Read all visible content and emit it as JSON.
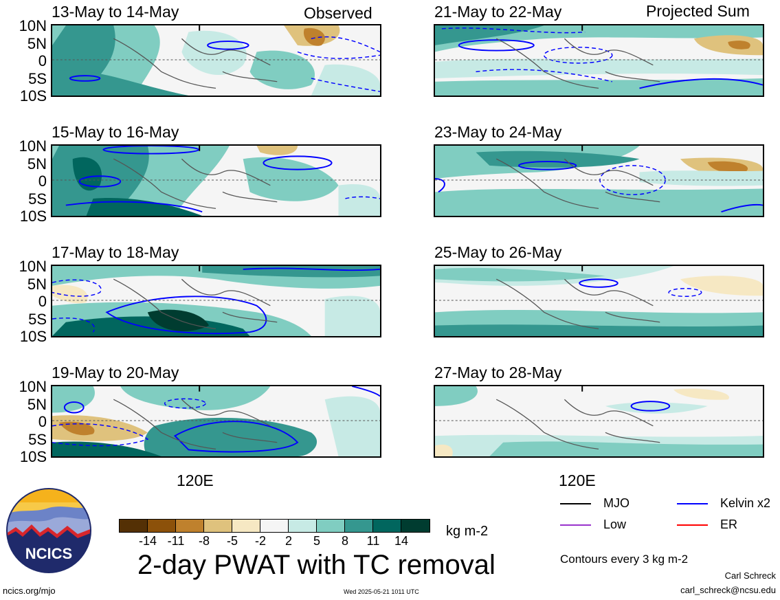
{
  "header": {
    "observed_label": "Observed",
    "projected_label": "Projected Sum"
  },
  "lat_labels": [
    "10N",
    "5N",
    "0",
    "5S",
    "10S"
  ],
  "lon_label": "120E",
  "panels": [
    {
      "title": "13-May to 14-May",
      "column": "observed"
    },
    {
      "title": "15-May to 16-May",
      "column": "observed"
    },
    {
      "title": "17-May to 18-May",
      "column": "observed"
    },
    {
      "title": "19-May to 20-May",
      "column": "observed"
    },
    {
      "title": "21-May to 22-May",
      "column": "projected"
    },
    {
      "title": "23-May to 24-May",
      "column": "projected"
    },
    {
      "title": "25-May to 26-May",
      "column": "projected"
    },
    {
      "title": "27-May to 28-May",
      "column": "projected"
    }
  ],
  "colorbar": {
    "ticks": [
      "-14",
      "-11",
      "-8",
      "-5",
      "-2",
      "2",
      "5",
      "8",
      "11",
      "14"
    ],
    "units": "kg m-2",
    "colors": [
      "#543005",
      "#8c510a",
      "#bf812d",
      "#dfc27d",
      "#f6e8c3",
      "#f5f5f5",
      "#c7eae5",
      "#80cdc1",
      "#35978f",
      "#01665e",
      "#003c30"
    ]
  },
  "main_title": "2-day PWAT with TC removal",
  "legend": {
    "items": [
      {
        "label": "MJO",
        "color": "#000000"
      },
      {
        "label": "Kelvin x2",
        "color": "#0000ff"
      },
      {
        "label": "Low",
        "color": "#9933cc"
      },
      {
        "label": "ER",
        "color": "#ff0000"
      }
    ],
    "contour_note": "Contours every 3 kg m-2"
  },
  "logo": {
    "text": "NCICS"
  },
  "footer": {
    "site": "ncics.org/mjo",
    "timestamp": "Wed 2025-05-21 1011 UTC",
    "author": "Carl Schreck",
    "email": "carl_schreck@ncsu.edu"
  }
}
